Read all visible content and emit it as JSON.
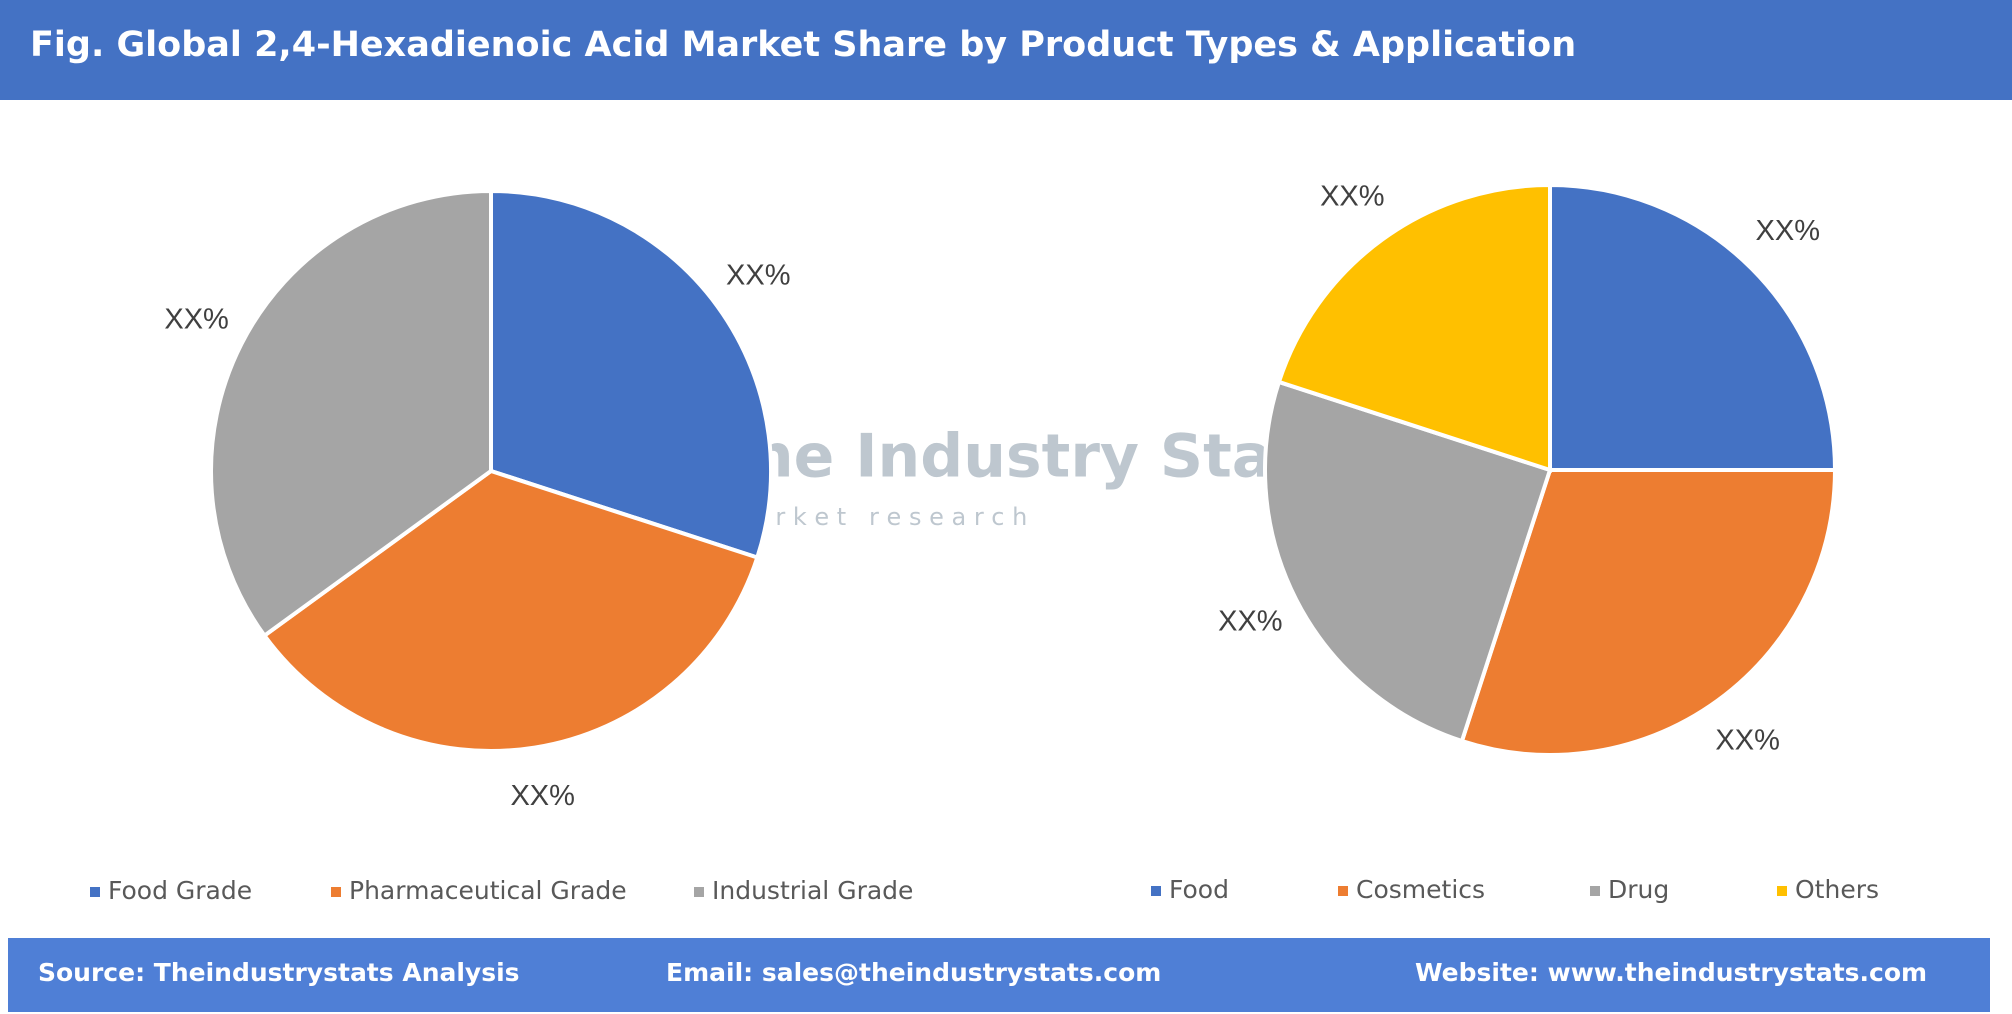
{
  "header": {
    "title": "Fig. Global 2,4-Hexadienoic Acid Market Share by Product Types & Application"
  },
  "watermark": {
    "brand": "The Industry Stats",
    "tagline": "m a r k e t   r e s e a r c h"
  },
  "chart_data": [
    {
      "type": "pie",
      "categories": [
        "Food Grade",
        "Pharmaceutical Grade",
        "Industrial Grade"
      ],
      "values": [
        30,
        35,
        35
      ],
      "value_labels": [
        "XX%",
        "XX%",
        "XX%"
      ],
      "colors": [
        "#4472c4",
        "#ed7d31",
        "#a5a5a5"
      ]
    },
    {
      "type": "pie",
      "categories": [
        "Food",
        "Cosmetics",
        "Drug",
        "Others"
      ],
      "values": [
        25,
        30,
        25,
        20
      ],
      "value_labels": [
        "XX%",
        "XX%",
        "XX%",
        "XX%"
      ],
      "colors": [
        "#4472c4",
        "#ed7d31",
        "#a5a5a5",
        "#ffc000"
      ]
    }
  ],
  "footer": {
    "source": "Source: Theindustrystats Analysis",
    "email": "Email: sales@theindustrystats.com",
    "website": "Website: www.theindustrystats.com"
  }
}
